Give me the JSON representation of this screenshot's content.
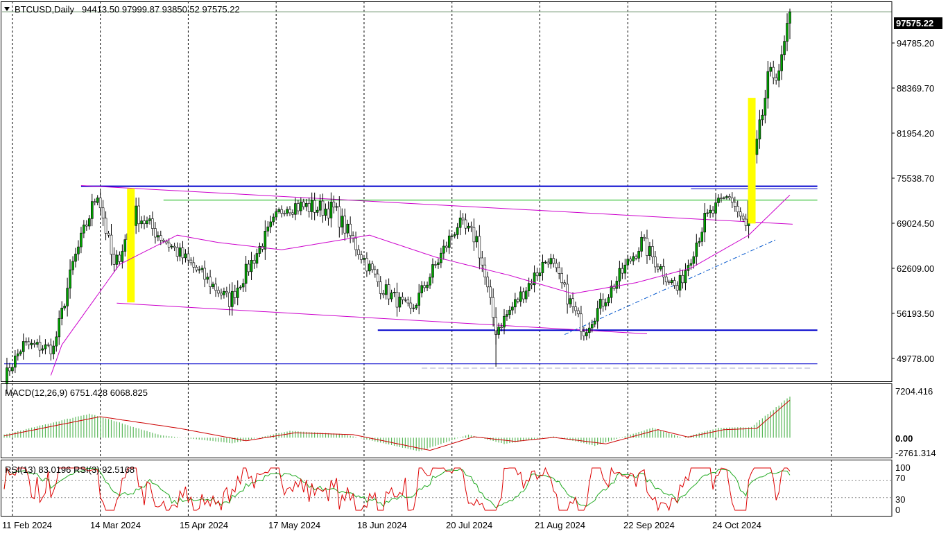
{
  "header": {
    "menu_icon": "triangle-down-icon",
    "symbol": "BTCUSD,Daily",
    "ohlc": "94413.50 97999.87 93850.52 97575.22"
  },
  "price_axis": {
    "ticks": [
      "94785.20",
      "88369.70",
      "81954.20",
      "75538.70",
      "69024.50",
      "62609.00",
      "56193.50",
      "49778.00"
    ],
    "current_price": "97575.22"
  },
  "macd": {
    "label": "MACD(12,26,9) 6751.428 6068.825",
    "ticks": [
      "7204.416",
      "0.00",
      "-2761.314"
    ]
  },
  "rsi": {
    "label": "RSI(13) 83.0196  RSI(3) 92.5168",
    "ticks": [
      "100",
      "70",
      "30",
      "0"
    ]
  },
  "date_axis": {
    "labels": [
      "11 Feb 2024",
      "14 Mar 2024",
      "15 Apr 2024",
      "17 May 2024",
      "18 Jun 2024",
      "20 Jul 2024",
      "21 Aug 2024",
      "22 Sep 2024",
      "24 Oct 2024"
    ]
  },
  "colors": {
    "bull": "#00a000",
    "bear": "#000000",
    "ma": "#cc00cc",
    "level": "#0000cc",
    "green_line": "#00b000",
    "highlight": "#ffff00",
    "macd_hist": "#5ab85a",
    "macd_signal": "#cc0000",
    "rsi_fast": "#dd0000",
    "rsi_slow": "#22aa22"
  },
  "chart_data": {
    "type": "candlestick",
    "symbol": "BTCUSD",
    "timeframe": "Daily",
    "x_range": [
      "2024-02-08",
      "2024-11-20"
    ],
    "y_range": [
      47000,
      99000
    ],
    "last": {
      "open": 94413.5,
      "high": 97999.87,
      "low": 93850.52,
      "close": 97575.22
    },
    "anchors": [
      {
        "date": "2024-02-08",
        "close": 47500
      },
      {
        "date": "2024-02-15",
        "close": 52000
      },
      {
        "date": "2024-02-26",
        "close": 51500
      },
      {
        "date": "2024-03-04",
        "close": 63000
      },
      {
        "date": "2024-03-13",
        "close": 73000
      },
      {
        "date": "2024-03-19",
        "close": 62500
      },
      {
        "date": "2024-03-27",
        "close": 70000
      },
      {
        "date": "2024-04-13",
        "close": 64000
      },
      {
        "date": "2024-04-30",
        "close": 58000
      },
      {
        "date": "2024-05-20",
        "close": 71200
      },
      {
        "date": "2024-06-07",
        "close": 70500
      },
      {
        "date": "2024-06-24",
        "close": 60000
      },
      {
        "date": "2024-07-05",
        "close": 56500
      },
      {
        "date": "2024-07-22",
        "close": 68500
      },
      {
        "date": "2024-07-29",
        "close": 66500
      },
      {
        "date": "2024-08-05",
        "close": 54000
      },
      {
        "date": "2024-08-24",
        "close": 64000
      },
      {
        "date": "2024-09-06",
        "close": 53900
      },
      {
        "date": "2024-09-27",
        "close": 66000
      },
      {
        "date": "2024-10-10",
        "close": 59500
      },
      {
        "date": "2024-10-20",
        "close": 69000
      },
      {
        "date": "2024-10-29",
        "close": 72500
      },
      {
        "date": "2024-11-04",
        "close": 67900
      },
      {
        "date": "2024-11-06",
        "close": 74800
      },
      {
        "date": "2024-11-12",
        "close": 88000
      },
      {
        "date": "2024-11-17",
        "close": 90500
      },
      {
        "date": "2024-11-20",
        "close": 97575
      }
    ],
    "moving_average": [
      {
        "date": "2024-02-08",
        "value": 30000
      },
      {
        "date": "2024-02-29",
        "value": 52000
      },
      {
        "date": "2024-03-21",
        "value": 63000
      },
      {
        "date": "2024-04-11",
        "value": 67000
      },
      {
        "date": "2024-04-26",
        "value": 66000
      },
      {
        "date": "2024-05-19",
        "value": 65000
      },
      {
        "date": "2024-06-20",
        "value": 67000
      },
      {
        "date": "2024-07-14",
        "value": 64000
      },
      {
        "date": "2024-08-10",
        "value": 61500
      },
      {
        "date": "2024-09-02",
        "value": 59000
      },
      {
        "date": "2024-09-25",
        "value": 60500
      },
      {
        "date": "2024-10-15",
        "value": 62500
      },
      {
        "date": "2024-11-05",
        "value": 67000
      },
      {
        "date": "2024-11-20",
        "value": 72500
      }
    ],
    "horizontal_levels": [
      {
        "value": 73700,
        "from": "2024-03-07",
        "to": "2024-11-30",
        "color": "#0000cc"
      },
      {
        "value": 73350,
        "from": "2024-10-15",
        "to": "2024-11-30",
        "color": "#0000cc"
      },
      {
        "value": 71800,
        "from": "2024-04-06",
        "to": "2024-11-30",
        "color": "#00b000"
      },
      {
        "value": 54000,
        "from": "2024-06-23",
        "to": "2024-11-30",
        "color": "#0000cc"
      },
      {
        "value": 49400,
        "from": "2024-02-08",
        "to": "2024-11-30",
        "color": "#0000cc"
      },
      {
        "value": 48800,
        "from": "2024-07-09",
        "to": "2024-11-28",
        "color": "#aaaacc",
        "dashed": true
      }
    ],
    "trend_lines": [
      {
        "from": {
          "date": "2024-03-07",
          "value": 73800
        },
        "to": {
          "date": "2024-11-21",
          "value": 68500
        },
        "color": "#cc00cc"
      },
      {
        "from": {
          "date": "2024-03-20",
          "value": 57700
        },
        "to": {
          "date": "2024-09-29",
          "value": 53500
        },
        "color": "#cc00cc"
      },
      {
        "from": {
          "date": "2024-08-30",
          "value": 53400
        },
        "to": {
          "date": "2024-11-15",
          "value": 66400
        },
        "color": "#0055cc",
        "dashed": true
      }
    ],
    "highlight_bars": [
      {
        "date": "2024-03-25",
        "low": 57800,
        "high": 73400
      },
      {
        "date": "2024-11-06",
        "low": 68600,
        "high": 85800
      }
    ],
    "macd": {
      "params": "12,26,9",
      "value": 6751.428,
      "signal_value": 6068.825,
      "range": [
        -2761.314,
        7204.416
      ],
      "main": [
        {
          "date": "2024-02-08",
          "value": 500
        },
        {
          "date": "2024-03-10",
          "value": 3900
        },
        {
          "date": "2024-04-05",
          "value": 400
        },
        {
          "date": "2024-05-01",
          "value": -900
        },
        {
          "date": "2024-05-22",
          "value": 1100
        },
        {
          "date": "2024-06-10",
          "value": 600
        },
        {
          "date": "2024-07-08",
          "value": -2200
        },
        {
          "date": "2024-07-26",
          "value": 500
        },
        {
          "date": "2024-08-08",
          "value": -1000
        },
        {
          "date": "2024-08-26",
          "value": 200
        },
        {
          "date": "2024-09-10",
          "value": -1300
        },
        {
          "date": "2024-10-01",
          "value": 1600
        },
        {
          "date": "2024-10-12",
          "value": 0
        },
        {
          "date": "2024-10-25",
          "value": 1600
        },
        {
          "date": "2024-11-06",
          "value": 1700
        },
        {
          "date": "2024-11-20",
          "value": 6750
        }
      ],
      "signal": [
        {
          "date": "2024-02-08",
          "value": 300
        },
        {
          "date": "2024-03-14",
          "value": 3400
        },
        {
          "date": "2024-04-12",
          "value": 1500
        },
        {
          "date": "2024-05-06",
          "value": -500
        },
        {
          "date": "2024-05-24",
          "value": 800
        },
        {
          "date": "2024-06-14",
          "value": 500
        },
        {
          "date": "2024-07-12",
          "value": -2050
        },
        {
          "date": "2024-07-28",
          "value": 150
        },
        {
          "date": "2024-08-12",
          "value": -600
        },
        {
          "date": "2024-08-26",
          "value": 50
        },
        {
          "date": "2024-09-14",
          "value": -1000
        },
        {
          "date": "2024-10-03",
          "value": 1300
        },
        {
          "date": "2024-10-14",
          "value": 100
        },
        {
          "date": "2024-10-27",
          "value": 1300
        },
        {
          "date": "2024-11-08",
          "value": 1500
        },
        {
          "date": "2024-11-20",
          "value": 6070
        }
      ]
    },
    "rsi": {
      "periods": [
        13,
        3
      ],
      "values": [
        83.0196,
        92.5168
      ],
      "levels": [
        30,
        70
      ],
      "range": [
        0,
        100
      ]
    }
  }
}
